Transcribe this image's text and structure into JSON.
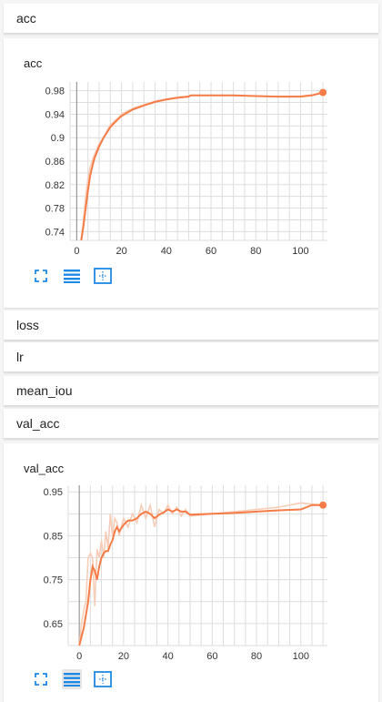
{
  "sections": {
    "acc_header": "acc",
    "loss_header": "loss",
    "lr_header": "lr",
    "mean_iou_header": "mean_iou",
    "val_acc_header": "val_acc"
  },
  "colors": {
    "line": "#f57c46",
    "raw": "#f8cdb8",
    "grid": "#dddddd",
    "axis": "#999999",
    "icon": "#1e88e5"
  },
  "toolbar_icons": [
    "fit-to-view-icon",
    "data-table-icon",
    "toggle-y-axis-icon"
  ],
  "chart_data": [
    {
      "type": "line",
      "title": "acc",
      "x_ticks": [
        0,
        20,
        40,
        60,
        80,
        100
      ],
      "y_ticks": [
        0.74,
        0.78,
        0.82,
        0.86,
        0.9,
        0.94,
        0.98
      ],
      "xlim": [
        -3,
        112
      ],
      "ylim": [
        0.725,
        0.995
      ],
      "grid": true,
      "series": [
        {
          "smoothed": true,
          "x": [
            2,
            3,
            4,
            5,
            6,
            7,
            8,
            10,
            12,
            15,
            18,
            20,
            25,
            30,
            35,
            40,
            45,
            50,
            51,
            60,
            70,
            80,
            90,
            100,
            105,
            110
          ],
          "y": [
            0.725,
            0.75,
            0.78,
            0.81,
            0.835,
            0.852,
            0.866,
            0.885,
            0.9,
            0.918,
            0.93,
            0.937,
            0.948,
            0.955,
            0.961,
            0.965,
            0.968,
            0.97,
            0.972,
            0.972,
            0.972,
            0.971,
            0.97,
            0.97,
            0.972,
            0.977
          ]
        },
        {
          "smoothed": false,
          "x": [
            2,
            3,
            4,
            5,
            6,
            7,
            8,
            10,
            12,
            15,
            18,
            20,
            25,
            30,
            35,
            40,
            45,
            50,
            51,
            60,
            70,
            80,
            90,
            100,
            105,
            110
          ],
          "y": [
            0.725,
            0.76,
            0.8,
            0.83,
            0.85,
            0.862,
            0.872,
            0.89,
            0.9,
            0.922,
            0.932,
            0.94,
            0.95,
            0.956,
            0.962,
            0.966,
            0.969,
            0.971,
            0.972,
            0.972,
            0.972,
            0.971,
            0.97,
            0.971,
            0.973,
            0.977
          ]
        }
      ]
    },
    {
      "type": "line",
      "title": "val_acc",
      "x_ticks": [
        0,
        20,
        40,
        60,
        80,
        100
      ],
      "y_ticks": [
        0.65,
        0.75,
        0.85,
        0.95
      ],
      "xlim": [
        -5,
        112
      ],
      "ylim": [
        0.6,
        0.965
      ],
      "grid": true,
      "series": [
        {
          "smoothed": true,
          "x": [
            0,
            1,
            2,
            3,
            4,
            5,
            6,
            7,
            8,
            9,
            10,
            11,
            12,
            13,
            14,
            15,
            16,
            17,
            18,
            20,
            22,
            24,
            26,
            28,
            30,
            32,
            34,
            36,
            38,
            40,
            42,
            44,
            46,
            48,
            50,
            60,
            70,
            80,
            90,
            100,
            105,
            110
          ],
          "y": [
            0.6,
            0.62,
            0.64,
            0.67,
            0.7,
            0.75,
            0.78,
            0.77,
            0.75,
            0.78,
            0.8,
            0.81,
            0.815,
            0.815,
            0.83,
            0.84,
            0.86,
            0.87,
            0.86,
            0.875,
            0.885,
            0.885,
            0.89,
            0.9,
            0.905,
            0.9,
            0.89,
            0.898,
            0.903,
            0.91,
            0.905,
            0.91,
            0.905,
            0.905,
            0.898,
            0.9,
            0.902,
            0.905,
            0.908,
            0.91,
            0.92,
            0.92
          ]
        },
        {
          "smoothed": false,
          "x": [
            0,
            1,
            2,
            3,
            4,
            5,
            6,
            7,
            8,
            9,
            10,
            11,
            12,
            13,
            14,
            15,
            16,
            17,
            18,
            20,
            22,
            24,
            26,
            28,
            30,
            32,
            34,
            36,
            38,
            40,
            42,
            44,
            46,
            48,
            50,
            60,
            70,
            80,
            90,
            100,
            105,
            110
          ],
          "y": [
            0.6,
            0.65,
            0.68,
            0.7,
            0.8,
            0.81,
            0.8,
            0.69,
            0.82,
            0.8,
            0.84,
            0.8,
            0.86,
            0.82,
            0.9,
            0.85,
            0.89,
            0.88,
            0.85,
            0.89,
            0.87,
            0.9,
            0.88,
            0.92,
            0.89,
            0.92,
            0.87,
            0.91,
            0.9,
            0.92,
            0.9,
            0.915,
            0.895,
            0.91,
            0.895,
            0.9,
            0.905,
            0.91,
            0.915,
            0.925,
            0.922,
            0.92
          ]
        }
      ]
    }
  ]
}
